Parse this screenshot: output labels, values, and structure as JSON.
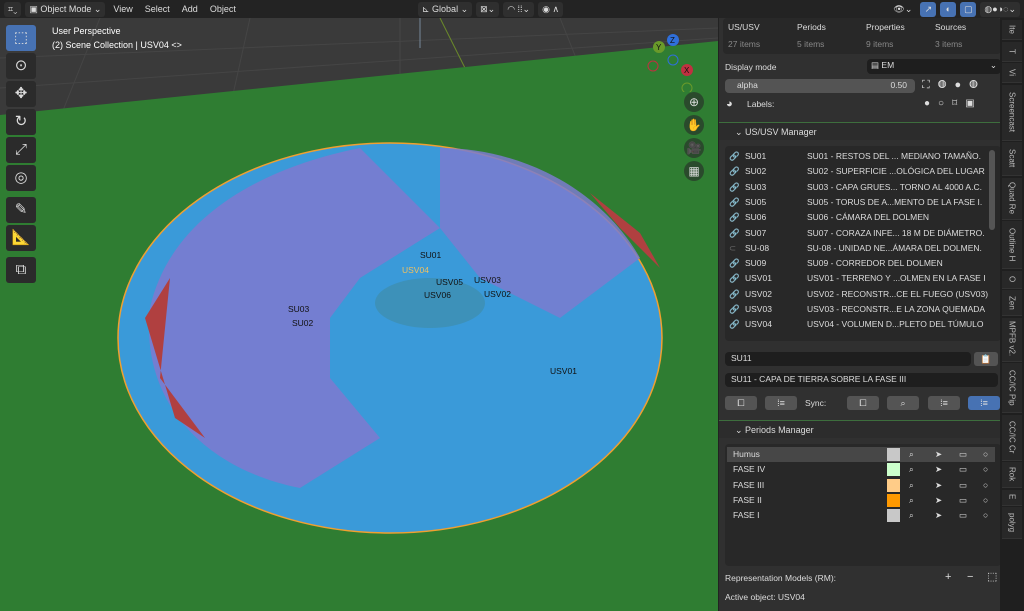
{
  "header": {
    "mode": "Object Mode",
    "menus": [
      "View",
      "Select",
      "Add",
      "Object"
    ],
    "orientation": "Global"
  },
  "viewport": {
    "perspective": "User Perspective",
    "collection": "(2) Scene Collection | USV04 <>",
    "labels": [
      {
        "t": "SU01"
      },
      {
        "t": "USV04"
      },
      {
        "t": "USV05"
      },
      {
        "t": "USV06"
      },
      {
        "t": "USV03"
      },
      {
        "t": "USV02"
      },
      {
        "t": "SU03"
      },
      {
        "t": "SU02"
      },
      {
        "t": "USV01"
      }
    ],
    "gizmo": {
      "z": "Z",
      "y": "Y",
      "x": "X"
    }
  },
  "stats": [
    {
      "label": "US/USV",
      "count": "27 items"
    },
    {
      "label": "Periods",
      "count": "5 items"
    },
    {
      "label": "Properties",
      "count": "9 items"
    },
    {
      "label": "Sources",
      "count": "3 items"
    }
  ],
  "display": {
    "label": "Display mode",
    "value": "EM",
    "alpha_label": "alpha",
    "alpha_value": "0.50",
    "labels_label": "Labels:"
  },
  "us_manager": {
    "title": "US/USV Manager",
    "items": [
      {
        "id": "SU01",
        "desc": "SU01 - RESTOS DEL ... MEDIANO TAMAÑO.",
        "linked": true
      },
      {
        "id": "SU02",
        "desc": "SU02 - SUPERFICIE ...OLÓGICA DEL LUGAR",
        "linked": true
      },
      {
        "id": "SU03",
        "desc": "SU03 - CAPA GRUES... TORNO AL 4000 A.C.",
        "linked": true
      },
      {
        "id": "SU05",
        "desc": "SU05 - TORUS DE A...MENTO DE LA FASE I.",
        "linked": true
      },
      {
        "id": "SU06",
        "desc": "SU06 - CÁMARA DEL DOLMEN",
        "linked": true
      },
      {
        "id": "SU07",
        "desc": "SU07 - CORAZA INFE... 18 M DE DIÁMETRO.",
        "linked": true
      },
      {
        "id": "SU-08",
        "desc": "SU-08 - UNIDAD NE...ÁMARA DEL DOLMEN.",
        "linked": false
      },
      {
        "id": "SU09",
        "desc": "SU09 - CORREDOR DEL DOLMEN",
        "linked": true
      },
      {
        "id": "USV01",
        "desc": "USV01 - TERRENO Y ...OLMEN EN LA FASE I",
        "linked": true
      },
      {
        "id": "USV02",
        "desc": "USV02 - RECONSTR...CE EL FUEGO (USV03)",
        "linked": true
      },
      {
        "id": "USV03",
        "desc": "USV03 - RECONSTR...E LA ZONA QUEMADA",
        "linked": true
      },
      {
        "id": "USV04",
        "desc": "USV04 - VOLUMEN D...PLETO DEL TÚMULO",
        "linked": true
      }
    ],
    "name_field": "SU11",
    "desc_field": "SU11 - CAPA DE TIERRA SOBRE LA FASE III",
    "sync_label": "Sync:"
  },
  "periods": {
    "title": "Periods Manager",
    "items": [
      {
        "name": "Humus",
        "color": "#c8c8c8"
      },
      {
        "name": "FASE IV",
        "color": "#ccffcc"
      },
      {
        "name": "FASE III",
        "color": "#ffcc88"
      },
      {
        "name": "FASE II",
        "color": "#ff9900"
      },
      {
        "name": "FASE I",
        "color": "#c8c8c8"
      }
    ],
    "rm_label": "Representation Models (RM):",
    "active_object": "Active object: USV04"
  },
  "tabs": [
    "Ite",
    "T",
    "Vi",
    "Screencast",
    "Scatt",
    "Quad Re",
    "Outline H",
    "O",
    "Zen",
    "MPFB v2.",
    "CC/IC Pip",
    "CC/IC Cr",
    "Rok",
    "E",
    "polyg"
  ],
  "colors": {
    "accent": "#4772b3",
    "ground": "#2f7d32",
    "mesh": "#3a9ad9",
    "outline": "#f0a030"
  }
}
